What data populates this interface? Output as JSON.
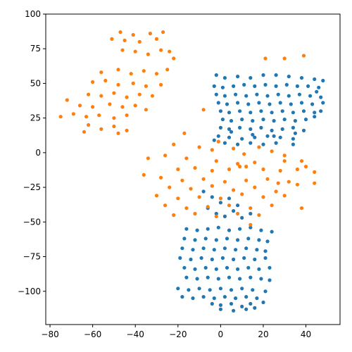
{
  "chart_data": {
    "type": "scatter",
    "xlim": [
      -82,
      56
    ],
    "ylim": [
      -124,
      100
    ],
    "x_ticks": [
      -80,
      -60,
      -40,
      -20,
      0,
      20,
      40
    ],
    "y_ticks": [
      -100,
      -75,
      -50,
      -25,
      0,
      25,
      50,
      75,
      100
    ],
    "grid": false,
    "legend": "none",
    "title": "",
    "xlabel": "",
    "ylabel": "",
    "series": [
      {
        "color": "#1f77b4",
        "points": [
          [
            -2,
            56
          ],
          [
            2,
            54
          ],
          [
            8,
            55
          ],
          [
            14,
            54
          ],
          [
            20,
            56
          ],
          [
            26,
            56
          ],
          [
            32,
            55
          ],
          [
            38,
            54
          ],
          [
            44,
            53
          ],
          [
            48,
            52
          ],
          [
            -3,
            48
          ],
          [
            1,
            47
          ],
          [
            6,
            48
          ],
          [
            11,
            49
          ],
          [
            16,
            48
          ],
          [
            21,
            49
          ],
          [
            26,
            48
          ],
          [
            31,
            49
          ],
          [
            36,
            48
          ],
          [
            41,
            48
          ],
          [
            46,
            47
          ],
          [
            -2,
            42
          ],
          [
            2,
            41
          ],
          [
            7,
            42
          ],
          [
            12,
            41
          ],
          [
            17,
            42
          ],
          [
            22,
            41
          ],
          [
            27,
            42
          ],
          [
            32,
            41
          ],
          [
            37,
            42
          ],
          [
            42,
            41
          ],
          [
            47,
            40
          ],
          [
            -1,
            36
          ],
          [
            3,
            35
          ],
          [
            8,
            36
          ],
          [
            13,
            35
          ],
          [
            18,
            36
          ],
          [
            23,
            35
          ],
          [
            28,
            36
          ],
          [
            33,
            35
          ],
          [
            38,
            36
          ],
          [
            43,
            35
          ],
          [
            48,
            36
          ],
          [
            0,
            30
          ],
          [
            4,
            29
          ],
          [
            9,
            30
          ],
          [
            14,
            29
          ],
          [
            19,
            30
          ],
          [
            24,
            29
          ],
          [
            29,
            30
          ],
          [
            34,
            29
          ],
          [
            39,
            30
          ],
          [
            44,
            29
          ],
          [
            1,
            24
          ],
          [
            5,
            23
          ],
          [
            10,
            24
          ],
          [
            15,
            23
          ],
          [
            20,
            24
          ],
          [
            25,
            23
          ],
          [
            30,
            24
          ],
          [
            35,
            23
          ],
          [
            40,
            24
          ],
          [
            44,
            26
          ],
          [
            0,
            18
          ],
          [
            4,
            17
          ],
          [
            9,
            18
          ],
          [
            14,
            17
          ],
          [
            19,
            18
          ],
          [
            24,
            16
          ],
          [
            29,
            17
          ],
          [
            34,
            18
          ],
          [
            39,
            16
          ],
          [
            -1,
            12
          ],
          [
            4,
            11
          ],
          [
            10,
            10
          ],
          [
            16,
            11
          ],
          [
            22,
            12
          ],
          [
            28,
            11
          ],
          [
            34,
            10
          ],
          [
            -3,
            9
          ],
          [
            2,
            7
          ],
          [
            8,
            6
          ],
          [
            14,
            7
          ],
          [
            20,
            6
          ],
          [
            26,
            7
          ],
          [
            34,
            6
          ],
          [
            5,
            15
          ],
          [
            15,
            13
          ],
          [
            25,
            12
          ],
          [
            35,
            14
          ],
          [
            45,
            44
          ],
          [
            47,
            30
          ],
          [
            -8,
            -28
          ],
          [
            -4,
            -32
          ],
          [
            0,
            -36
          ],
          [
            4,
            -33
          ],
          [
            8,
            -38
          ],
          [
            -6,
            -40
          ],
          [
            -2,
            -44
          ],
          [
            2,
            -46
          ],
          [
            6,
            -42
          ],
          [
            10,
            -47
          ],
          [
            14,
            -44
          ],
          [
            -16,
            -55
          ],
          [
            -11,
            -56
          ],
          [
            -6,
            -55
          ],
          [
            -1,
            -54
          ],
          [
            4,
            -56
          ],
          [
            9,
            -55
          ],
          [
            14,
            -54
          ],
          [
            19,
            -56
          ],
          [
            24,
            -57
          ],
          [
            -17,
            -62
          ],
          [
            -12,
            -63
          ],
          [
            -7,
            -62
          ],
          [
            -2,
            -63
          ],
          [
            3,
            -62
          ],
          [
            8,
            -63
          ],
          [
            13,
            -62
          ],
          [
            18,
            -63
          ],
          [
            22,
            -64
          ],
          [
            -18,
            -69
          ],
          [
            -13,
            -70
          ],
          [
            -8,
            -69
          ],
          [
            -3,
            -70
          ],
          [
            2,
            -69
          ],
          [
            7,
            -70
          ],
          [
            12,
            -69
          ],
          [
            17,
            -70
          ],
          [
            21,
            -71
          ],
          [
            -19,
            -76
          ],
          [
            -14,
            -77
          ],
          [
            -9,
            -76
          ],
          [
            -4,
            -77
          ],
          [
            1,
            -76
          ],
          [
            6,
            -77
          ],
          [
            11,
            -76
          ],
          [
            16,
            -77
          ],
          [
            21,
            -76
          ],
          [
            -17,
            -83
          ],
          [
            -12,
            -84
          ],
          [
            -7,
            -83
          ],
          [
            -2,
            -84
          ],
          [
            3,
            -83
          ],
          [
            8,
            -84
          ],
          [
            13,
            -83
          ],
          [
            18,
            -84
          ],
          [
            23,
            -83
          ],
          [
            -16,
            -90
          ],
          [
            -11,
            -91
          ],
          [
            -6,
            -90
          ],
          [
            -1,
            -91
          ],
          [
            4,
            -90
          ],
          [
            9,
            -91
          ],
          [
            14,
            -90
          ],
          [
            19,
            -91
          ],
          [
            23,
            -92
          ],
          [
            -20,
            -98
          ],
          [
            -15,
            -99
          ],
          [
            -10,
            -98
          ],
          [
            -5,
            -99
          ],
          [
            0,
            -98
          ],
          [
            5,
            -99
          ],
          [
            10,
            -98
          ],
          [
            15,
            -99
          ],
          [
            21,
            -100
          ],
          [
            -18,
            -104
          ],
          [
            -13,
            -105
          ],
          [
            -8,
            -104
          ],
          [
            -3,
            -105
          ],
          [
            2,
            -104
          ],
          [
            7,
            -105
          ],
          [
            12,
            -104
          ],
          [
            17,
            -105
          ],
          [
            -4,
            -109
          ],
          [
            0,
            -110
          ],
          [
            5,
            -109
          ],
          [
            10,
            -111
          ],
          [
            14,
            -109
          ],
          [
            20,
            -108
          ],
          [
            0,
            -113
          ],
          [
            6,
            -114
          ],
          [
            12,
            -113
          ],
          [
            16,
            -112
          ]
        ]
      },
      {
        "color": "#ff7f0e",
        "points": [
          [
            -47,
            87
          ],
          [
            -41,
            85
          ],
          [
            -33,
            86
          ],
          [
            -51,
            82
          ],
          [
            -45,
            81
          ],
          [
            -38,
            80
          ],
          [
            -30,
            82
          ],
          [
            -27,
            87
          ],
          [
            -46,
            74
          ],
          [
            -40,
            73
          ],
          [
            -34,
            71
          ],
          [
            -28,
            74
          ],
          [
            -24,
            73
          ],
          [
            -22,
            68
          ],
          [
            -56,
            58
          ],
          [
            -48,
            60
          ],
          [
            -42,
            57
          ],
          [
            -36,
            59
          ],
          [
            -30,
            57
          ],
          [
            -25,
            60
          ],
          [
            -60,
            51
          ],
          [
            -54,
            52
          ],
          [
            -48,
            49
          ],
          [
            -41,
            50
          ],
          [
            -35,
            48
          ],
          [
            -28,
            49
          ],
          [
            -62,
            42
          ],
          [
            -56,
            41
          ],
          [
            -50,
            43
          ],
          [
            -44,
            40
          ],
          [
            -38,
            42
          ],
          [
            -32,
            41
          ],
          [
            -72,
            38
          ],
          [
            -66,
            34
          ],
          [
            -60,
            33
          ],
          [
            -52,
            35
          ],
          [
            -46,
            33
          ],
          [
            -40,
            34
          ],
          [
            -35,
            31
          ],
          [
            -75,
            26
          ],
          [
            -69,
            28
          ],
          [
            -63,
            26
          ],
          [
            -57,
            27
          ],
          [
            -50,
            25
          ],
          [
            -44,
            27
          ],
          [
            -62,
            20
          ],
          [
            -56,
            17
          ],
          [
            -50,
            19
          ],
          [
            -44,
            16
          ],
          [
            -64,
            15
          ],
          [
            -48,
            14
          ],
          [
            -8,
            31
          ],
          [
            -17,
            14
          ],
          [
            -10,
            4
          ],
          [
            -22,
            6
          ],
          [
            -4,
            2
          ],
          [
            6,
            3
          ],
          [
            -1,
            8
          ],
          [
            11,
            -1
          ],
          [
            18,
            4
          ],
          [
            24,
            1
          ],
          [
            30,
            -2
          ],
          [
            -34,
            -4
          ],
          [
            -26,
            -2
          ],
          [
            -16,
            -4
          ],
          [
            -2,
            -6
          ],
          [
            8,
            -8
          ],
          [
            16,
            -7
          ],
          [
            30,
            -6
          ],
          [
            38,
            -6
          ],
          [
            -20,
            -12
          ],
          [
            -12,
            -11
          ],
          [
            -4,
            -13
          ],
          [
            4,
            -12
          ],
          [
            12,
            -10
          ],
          [
            20,
            -12
          ],
          [
            28,
            -13
          ],
          [
            36,
            -12
          ],
          [
            40,
            -10
          ],
          [
            44,
            -14
          ],
          [
            -36,
            -16
          ],
          [
            -28,
            -18
          ],
          [
            -18,
            -20
          ],
          [
            -8,
            -19
          ],
          [
            2,
            -21
          ],
          [
            12,
            -20
          ],
          [
            22,
            -19
          ],
          [
            32,
            -21
          ],
          [
            -24,
            -25
          ],
          [
            -14,
            -26
          ],
          [
            -4,
            -24
          ],
          [
            6,
            -27
          ],
          [
            16,
            -25
          ],
          [
            26,
            -28
          ],
          [
            36,
            -23
          ],
          [
            44,
            -22
          ],
          [
            -30,
            -31
          ],
          [
            -20,
            -33
          ],
          [
            -10,
            -32
          ],
          [
            0,
            -33
          ],
          [
            10,
            -30
          ],
          [
            20,
            -32
          ],
          [
            30,
            -31
          ],
          [
            -26,
            -38
          ],
          [
            -16,
            -40
          ],
          [
            -6,
            -39
          ],
          [
            4,
            -38
          ],
          [
            14,
            -40
          ],
          [
            24,
            -38
          ],
          [
            38,
            -40
          ],
          [
            -22,
            -45
          ],
          [
            -12,
            -44
          ],
          [
            -2,
            -46
          ],
          [
            8,
            -44
          ],
          [
            18,
            -45
          ],
          [
            14,
            -52
          ],
          [
            30,
            68
          ],
          [
            21,
            68
          ],
          [
            39,
            70
          ],
          [
            9,
            -10
          ],
          [
            27,
            -22
          ]
        ]
      }
    ]
  }
}
